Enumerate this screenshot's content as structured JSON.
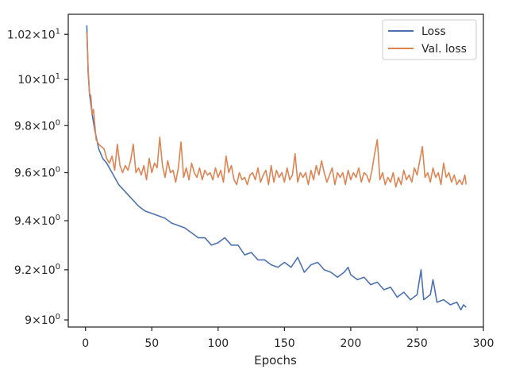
{
  "chart_data": {
    "type": "line",
    "title": "",
    "xlabel": "Epochs",
    "ylabel": "",
    "xlim": [
      -13,
      300
    ],
    "ylim": [
      8.972,
      10.29
    ],
    "yscale": "log",
    "grid": false,
    "legend_position": "top-right",
    "x_ticks": [
      0,
      50,
      100,
      150,
      200,
      250,
      300
    ],
    "y_ticks": [
      {
        "value": 9.0,
        "base": "9",
        "exp": "0"
      },
      {
        "value": 9.2,
        "base": "9.2",
        "exp": "0"
      },
      {
        "value": 9.4,
        "base": "9.4",
        "exp": "0"
      },
      {
        "value": 9.6,
        "base": "9.6",
        "exp": "0"
      },
      {
        "value": 9.8,
        "base": "9.8",
        "exp": "0"
      },
      {
        "value": 10.0,
        "base": "10",
        "exp": "1"
      },
      {
        "value": 10.2,
        "base": "1.02",
        "exp": "1"
      }
    ],
    "series": [
      {
        "name": "Loss",
        "color": "#4c72b0",
        "points": [
          [
            1,
            10.24
          ],
          [
            2,
            10.03
          ],
          [
            3,
            9.94
          ],
          [
            5,
            9.85
          ],
          [
            7,
            9.78
          ],
          [
            10,
            9.7
          ],
          [
            13,
            9.66
          ],
          [
            16,
            9.64
          ],
          [
            20,
            9.6
          ],
          [
            25,
            9.55
          ],
          [
            30,
            9.52
          ],
          [
            35,
            9.49
          ],
          [
            40,
            9.46
          ],
          [
            45,
            9.44
          ],
          [
            50,
            9.43
          ],
          [
            55,
            9.42
          ],
          [
            60,
            9.41
          ],
          [
            65,
            9.39
          ],
          [
            70,
            9.38
          ],
          [
            75,
            9.37
          ],
          [
            80,
            9.35
          ],
          [
            85,
            9.33
          ],
          [
            90,
            9.33
          ],
          [
            95,
            9.3
          ],
          [
            100,
            9.31
          ],
          [
            105,
            9.33
          ],
          [
            110,
            9.3
          ],
          [
            115,
            9.3
          ],
          [
            120,
            9.26
          ],
          [
            125,
            9.27
          ],
          [
            130,
            9.24
          ],
          [
            135,
            9.24
          ],
          [
            140,
            9.22
          ],
          [
            145,
            9.21
          ],
          [
            150,
            9.23
          ],
          [
            155,
            9.21
          ],
          [
            160,
            9.25
          ],
          [
            165,
            9.19
          ],
          [
            170,
            9.22
          ],
          [
            175,
            9.23
          ],
          [
            180,
            9.2
          ],
          [
            185,
            9.19
          ],
          [
            190,
            9.17
          ],
          [
            195,
            9.19
          ],
          [
            198,
            9.21
          ],
          [
            200,
            9.18
          ],
          [
            205,
            9.16
          ],
          [
            210,
            9.17
          ],
          [
            215,
            9.14
          ],
          [
            220,
            9.15
          ],
          [
            225,
            9.12
          ],
          [
            230,
            9.13
          ],
          [
            235,
            9.09
          ],
          [
            240,
            9.11
          ],
          [
            245,
            9.08
          ],
          [
            250,
            9.1
          ],
          [
            253,
            9.2
          ],
          [
            255,
            9.08
          ],
          [
            260,
            9.1
          ],
          [
            262,
            9.16
          ],
          [
            265,
            9.07
          ],
          [
            270,
            9.08
          ],
          [
            275,
            9.06
          ],
          [
            280,
            9.07
          ],
          [
            283,
            9.04
          ],
          [
            285,
            9.06
          ],
          [
            287,
            9.05
          ]
        ]
      },
      {
        "name": "Val. loss",
        "color": "#dd8452",
        "points": [
          [
            1,
            10.21
          ],
          [
            2,
            10.05
          ],
          [
            3,
            9.94
          ],
          [
            4,
            9.93
          ],
          [
            5,
            9.85
          ],
          [
            6,
            9.87
          ],
          [
            8,
            9.74
          ],
          [
            10,
            9.72
          ],
          [
            12,
            9.71
          ],
          [
            14,
            9.7
          ],
          [
            16,
            9.66
          ],
          [
            18,
            9.64
          ],
          [
            20,
            9.67
          ],
          [
            22,
            9.61
          ],
          [
            24,
            9.72
          ],
          [
            26,
            9.63
          ],
          [
            28,
            9.6
          ],
          [
            30,
            9.63
          ],
          [
            32,
            9.61
          ],
          [
            34,
            9.65
          ],
          [
            36,
            9.72
          ],
          [
            38,
            9.6
          ],
          [
            40,
            9.62
          ],
          [
            42,
            9.59
          ],
          [
            44,
            9.63
          ],
          [
            46,
            9.57
          ],
          [
            48,
            9.66
          ],
          [
            50,
            9.6
          ],
          [
            52,
            9.64
          ],
          [
            54,
            9.62
          ],
          [
            56,
            9.75
          ],
          [
            58,
            9.63
          ],
          [
            60,
            9.58
          ],
          [
            62,
            9.65
          ],
          [
            64,
            9.6
          ],
          [
            66,
            9.61
          ],
          [
            68,
            9.56
          ],
          [
            70,
            9.62
          ],
          [
            72,
            9.73
          ],
          [
            74,
            9.58
          ],
          [
            76,
            9.62
          ],
          [
            78,
            9.57
          ],
          [
            80,
            9.64
          ],
          [
            82,
            9.6
          ],
          [
            84,
            9.58
          ],
          [
            86,
            9.62
          ],
          [
            88,
            9.57
          ],
          [
            90,
            9.61
          ],
          [
            92,
            9.59
          ],
          [
            94,
            9.6
          ],
          [
            96,
            9.57
          ],
          [
            98,
            9.62
          ],
          [
            100,
            9.58
          ],
          [
            102,
            9.61
          ],
          [
            104,
            9.56
          ],
          [
            106,
            9.67
          ],
          [
            108,
            9.6
          ],
          [
            110,
            9.63
          ],
          [
            112,
            9.57
          ],
          [
            114,
            9.55
          ],
          [
            116,
            9.6
          ],
          [
            118,
            9.57
          ],
          [
            120,
            9.58
          ],
          [
            122,
            9.55
          ],
          [
            124,
            9.59
          ],
          [
            126,
            9.6
          ],
          [
            128,
            9.57
          ],
          [
            130,
            9.62
          ],
          [
            132,
            9.56
          ],
          [
            134,
            9.59
          ],
          [
            136,
            9.61
          ],
          [
            138,
            9.55
          ],
          [
            140,
            9.63
          ],
          [
            142,
            9.56
          ],
          [
            144,
            9.61
          ],
          [
            146,
            9.58
          ],
          [
            148,
            9.6
          ],
          [
            150,
            9.56
          ],
          [
            152,
            9.62
          ],
          [
            154,
            9.57
          ],
          [
            156,
            9.59
          ],
          [
            158,
            9.68
          ],
          [
            160,
            9.56
          ],
          [
            162,
            9.6
          ],
          [
            164,
            9.58
          ],
          [
            166,
            9.6
          ],
          [
            168,
            9.55
          ],
          [
            170,
            9.61
          ],
          [
            172,
            9.57
          ],
          [
            174,
            9.63
          ],
          [
            176,
            9.59
          ],
          [
            178,
            9.65
          ],
          [
            180,
            9.6
          ],
          [
            182,
            9.56
          ],
          [
            184,
            9.59
          ],
          [
            186,
            9.62
          ],
          [
            188,
            9.55
          ],
          [
            190,
            9.6
          ],
          [
            192,
            9.58
          ],
          [
            194,
            9.6
          ],
          [
            196,
            9.55
          ],
          [
            198,
            9.61
          ],
          [
            200,
            9.57
          ],
          [
            202,
            9.6
          ],
          [
            204,
            9.58
          ],
          [
            206,
            9.62
          ],
          [
            208,
            9.56
          ],
          [
            210,
            9.6
          ],
          [
            212,
            9.59
          ],
          [
            214,
            9.56
          ],
          [
            216,
            9.61
          ],
          [
            218,
            9.68
          ],
          [
            220,
            9.74
          ],
          [
            222,
            9.57
          ],
          [
            224,
            9.6
          ],
          [
            226,
            9.55
          ],
          [
            228,
            9.58
          ],
          [
            230,
            9.56
          ],
          [
            232,
            9.6
          ],
          [
            234,
            9.54
          ],
          [
            236,
            9.58
          ],
          [
            238,
            9.55
          ],
          [
            240,
            9.61
          ],
          [
            242,
            9.57
          ],
          [
            244,
            9.59
          ],
          [
            246,
            9.56
          ],
          [
            248,
            9.62
          ],
          [
            250,
            9.59
          ],
          [
            252,
            9.65
          ],
          [
            254,
            9.71
          ],
          [
            256,
            9.58
          ],
          [
            258,
            9.6
          ],
          [
            260,
            9.56
          ],
          [
            262,
            9.62
          ],
          [
            264,
            9.58
          ],
          [
            266,
            9.6
          ],
          [
            268,
            9.55
          ],
          [
            270,
            9.64
          ],
          [
            272,
            9.58
          ],
          [
            274,
            9.6
          ],
          [
            276,
            9.56
          ],
          [
            278,
            9.59
          ],
          [
            280,
            9.55
          ],
          [
            282,
            9.57
          ],
          [
            284,
            9.55
          ],
          [
            286,
            9.59
          ],
          [
            287,
            9.55
          ]
        ]
      }
    ]
  }
}
